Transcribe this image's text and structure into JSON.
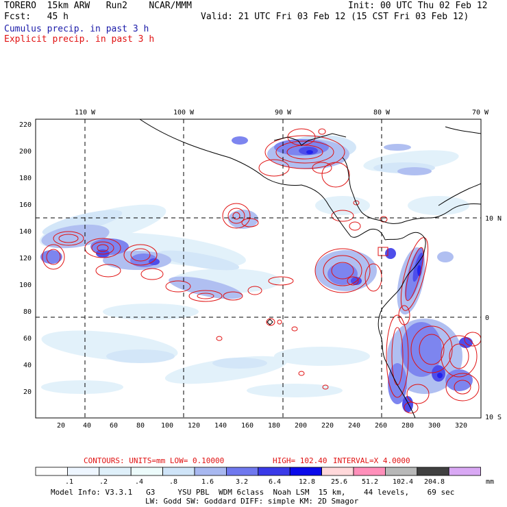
{
  "header": {
    "model_line_left": "TORERO  15km ARW   Run2    NCAR/MMM",
    "init_text": "Init: 00 UTC Thu 02 Feb 12",
    "fcst_line": "Fcst:   45 h",
    "valid_text": "Valid: 21 UTC Fri 03 Feb 12 (15 CST Fri 03 Feb 12)",
    "legend_cumulus": "Cumulus precip. in past 3 h",
    "legend_explicit": "Explicit precip. in past 3 h"
  },
  "map": {
    "lon_labels": [
      "110 W",
      "100 W",
      "90 W",
      "80 W",
      "70 W"
    ],
    "lat_labels": [
      "10 N",
      "0",
      "10 S"
    ],
    "y_ticks": [
      "220",
      "200",
      "180",
      "160",
      "140",
      "120",
      "100",
      "80",
      "60",
      "40",
      "20"
    ],
    "x_ticks": [
      "20",
      "40",
      "60",
      "80",
      "100",
      "120",
      "140",
      "160",
      "180",
      "200",
      "220",
      "240",
      "260",
      "280",
      "300",
      "320"
    ]
  },
  "contours": {
    "label": "CONTOURS:  UNITS=mm  LOW= 0.10000",
    "high": "HIGH=  102.40",
    "interval": "INTERVAL=X  4.0000"
  },
  "colorbar": {
    "labels": [
      ".1",
      ".2",
      ".4",
      ".8",
      "1.6",
      "3.2",
      "6.4",
      "12.8",
      "25.6",
      "51.2",
      "102.4",
      "204.8"
    ],
    "unit": "mm",
    "colors": [
      "#ffffff",
      "#eef6ff",
      "#dff0fa",
      "#ecfbfb",
      "#cfe4f8",
      "#a8b8f0",
      "#6f78ee",
      "#3a3ae8",
      "#0a0aea",
      "#ffd8da",
      "#ff8fba",
      "#b8b8b8",
      "#404040",
      "#d9a8f4"
    ]
  },
  "footer": {
    "line1": "Model Info: V3.3.1   G3     YSU PBL  WDM 6class  Noah LSM  15 km,    44 levels,    69 sec",
    "line2": "LW: Godd SW: Goddard DIFF: simple KM: 2D Smagor"
  }
}
